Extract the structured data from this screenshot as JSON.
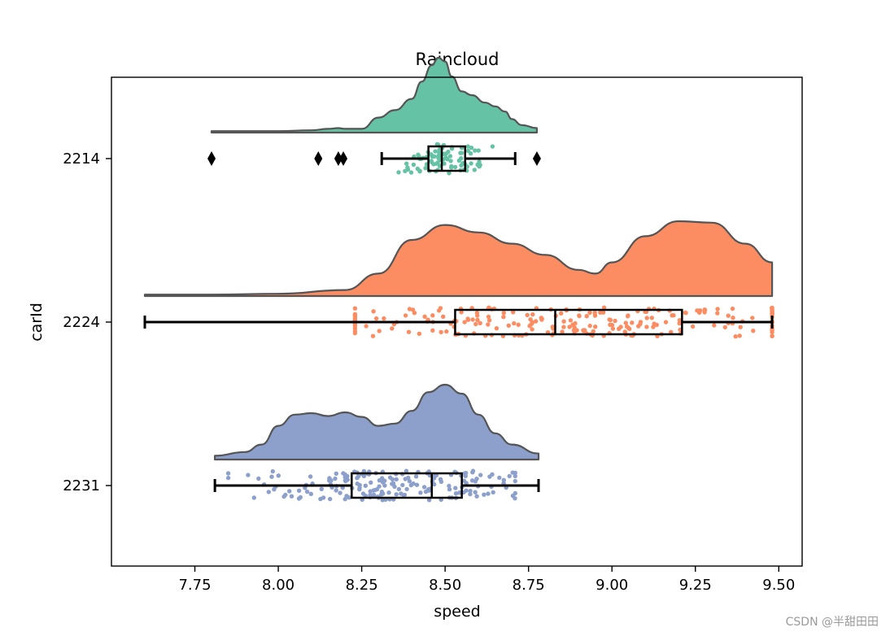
{
  "chart_data": {
    "type": "raincloud",
    "title": "Raincloud",
    "xlabel": "speed",
    "ylabel": "carId",
    "xlim": [
      7.5,
      9.57
    ],
    "xticks": [
      "7.75",
      "8.00",
      "8.25",
      "8.50",
      "8.75",
      "9.00",
      "9.25",
      "9.50"
    ],
    "xtick_values": [
      7.75,
      8.0,
      8.25,
      8.5,
      8.75,
      9.0,
      9.25,
      9.5
    ],
    "grid": false,
    "categories": [
      "2214",
      "2224",
      "2231"
    ],
    "series": [
      {
        "name": "2214",
        "color": "#66c2a5",
        "box": {
          "whisker_low": 8.31,
          "q1": 8.45,
          "median": 8.49,
          "q3": 8.56,
          "whisker_high": 8.71
        },
        "outliers": [
          7.8,
          8.12,
          8.18,
          8.195,
          8.775
        ],
        "density": {
          "x": [
            7.8,
            8.0,
            8.1,
            8.15,
            8.18,
            8.2,
            8.25,
            8.3,
            8.35,
            8.4,
            8.43,
            8.46,
            8.48,
            8.5,
            8.52,
            8.55,
            8.58,
            8.62,
            8.65,
            8.68,
            8.7,
            8.73,
            8.775
          ],
          "y": [
            0.02,
            0.02,
            0.03,
            0.05,
            0.06,
            0.05,
            0.05,
            0.2,
            0.3,
            0.45,
            0.68,
            0.9,
            1.0,
            0.95,
            0.75,
            0.55,
            0.5,
            0.4,
            0.35,
            0.28,
            0.18,
            0.1,
            0.06
          ]
        },
        "rain": {
          "min": 8.31,
          "max": 8.71,
          "count": 90,
          "center": 8.5,
          "spread": 0.07
        }
      },
      {
        "name": "2224",
        "color": "#fc8d62",
        "box": {
          "whisker_low": 7.6,
          "q1": 8.53,
          "median": 8.83,
          "q3": 9.21,
          "whisker_high": 9.48
        },
        "outliers": [],
        "density": {
          "x": [
            7.6,
            7.8,
            8.0,
            8.2,
            8.3,
            8.4,
            8.5,
            8.6,
            8.7,
            8.8,
            8.9,
            8.95,
            9.0,
            9.1,
            9.2,
            9.3,
            9.4,
            9.48
          ],
          "y": [
            0.02,
            0.02,
            0.03,
            0.08,
            0.3,
            0.75,
            0.95,
            0.85,
            0.7,
            0.55,
            0.35,
            0.3,
            0.45,
            0.8,
            1.0,
            0.98,
            0.7,
            0.45
          ]
        },
        "rain": {
          "min": 8.23,
          "max": 9.48,
          "count": 230,
          "center": 8.9,
          "spread": 0.4
        }
      },
      {
        "name": "2231",
        "color": "#8da0cb",
        "box": {
          "whisker_low": 7.81,
          "q1": 8.22,
          "median": 8.46,
          "q3": 8.55,
          "whisker_high": 8.78
        },
        "outliers": [],
        "density": {
          "x": [
            7.81,
            7.9,
            7.95,
            8.0,
            8.05,
            8.1,
            8.15,
            8.2,
            8.25,
            8.3,
            8.35,
            8.4,
            8.45,
            8.5,
            8.55,
            8.6,
            8.65,
            8.7,
            8.78
          ],
          "y": [
            0.05,
            0.1,
            0.2,
            0.45,
            0.6,
            0.62,
            0.58,
            0.63,
            0.57,
            0.45,
            0.48,
            0.65,
            0.9,
            1.0,
            0.88,
            0.6,
            0.35,
            0.2,
            0.08
          ]
        },
        "rain": {
          "min": 7.85,
          "max": 8.71,
          "count": 190,
          "center": 8.35,
          "spread": 0.2
        }
      }
    ]
  },
  "watermark": "CSDN @半甜田田"
}
